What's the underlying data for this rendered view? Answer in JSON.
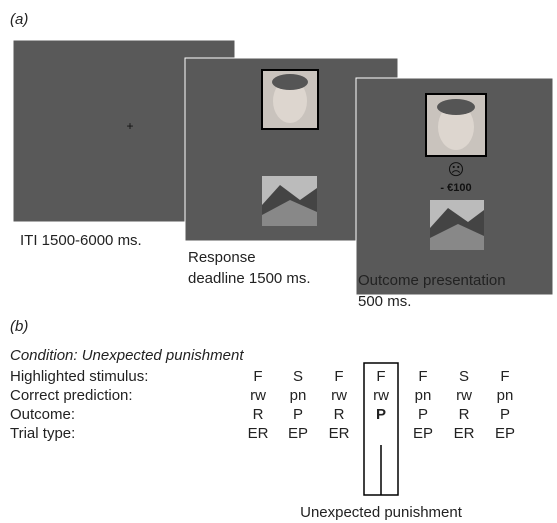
{
  "panel_a": {
    "label": "(a)",
    "screens": [
      {
        "fixation": "+",
        "caption": [
          "ITI 1500-6000 ms."
        ]
      },
      {
        "caption": [
          "Response",
          "deadline 1500 ms."
        ]
      },
      {
        "feedback_icon": "☹",
        "feedback_text": "- €100",
        "caption": [
          "Outcome presentation",
          "500 ms."
        ]
      }
    ]
  },
  "panel_b": {
    "label": "(b)",
    "condition": "Condition: Unexpected punishment",
    "row_labels": [
      "Highlighted stimulus:",
      "Correct prediction:",
      "Outcome:",
      "Trial type:"
    ],
    "columns": [
      {
        "highlighted": "F",
        "correct": "rw",
        "outcome": "R",
        "trial_type": "ER"
      },
      {
        "highlighted": "S",
        "correct": "pn",
        "outcome": "P",
        "trial_type": "EP"
      },
      {
        "highlighted": "F",
        "correct": "rw",
        "outcome": "R",
        "trial_type": "ER"
      },
      {
        "highlighted": "F",
        "correct": "rw",
        "outcome": "P"
      },
      {
        "highlighted": "F",
        "correct": "pn",
        "outcome": "P",
        "trial_type": "EP"
      },
      {
        "highlighted": "S",
        "correct": "rw",
        "outcome": "R",
        "trial_type": "ER"
      },
      {
        "highlighted": "F",
        "correct": "pn",
        "outcome": "P",
        "trial_type": "EP"
      }
    ],
    "highlight_label": "Unexpected punishment"
  }
}
